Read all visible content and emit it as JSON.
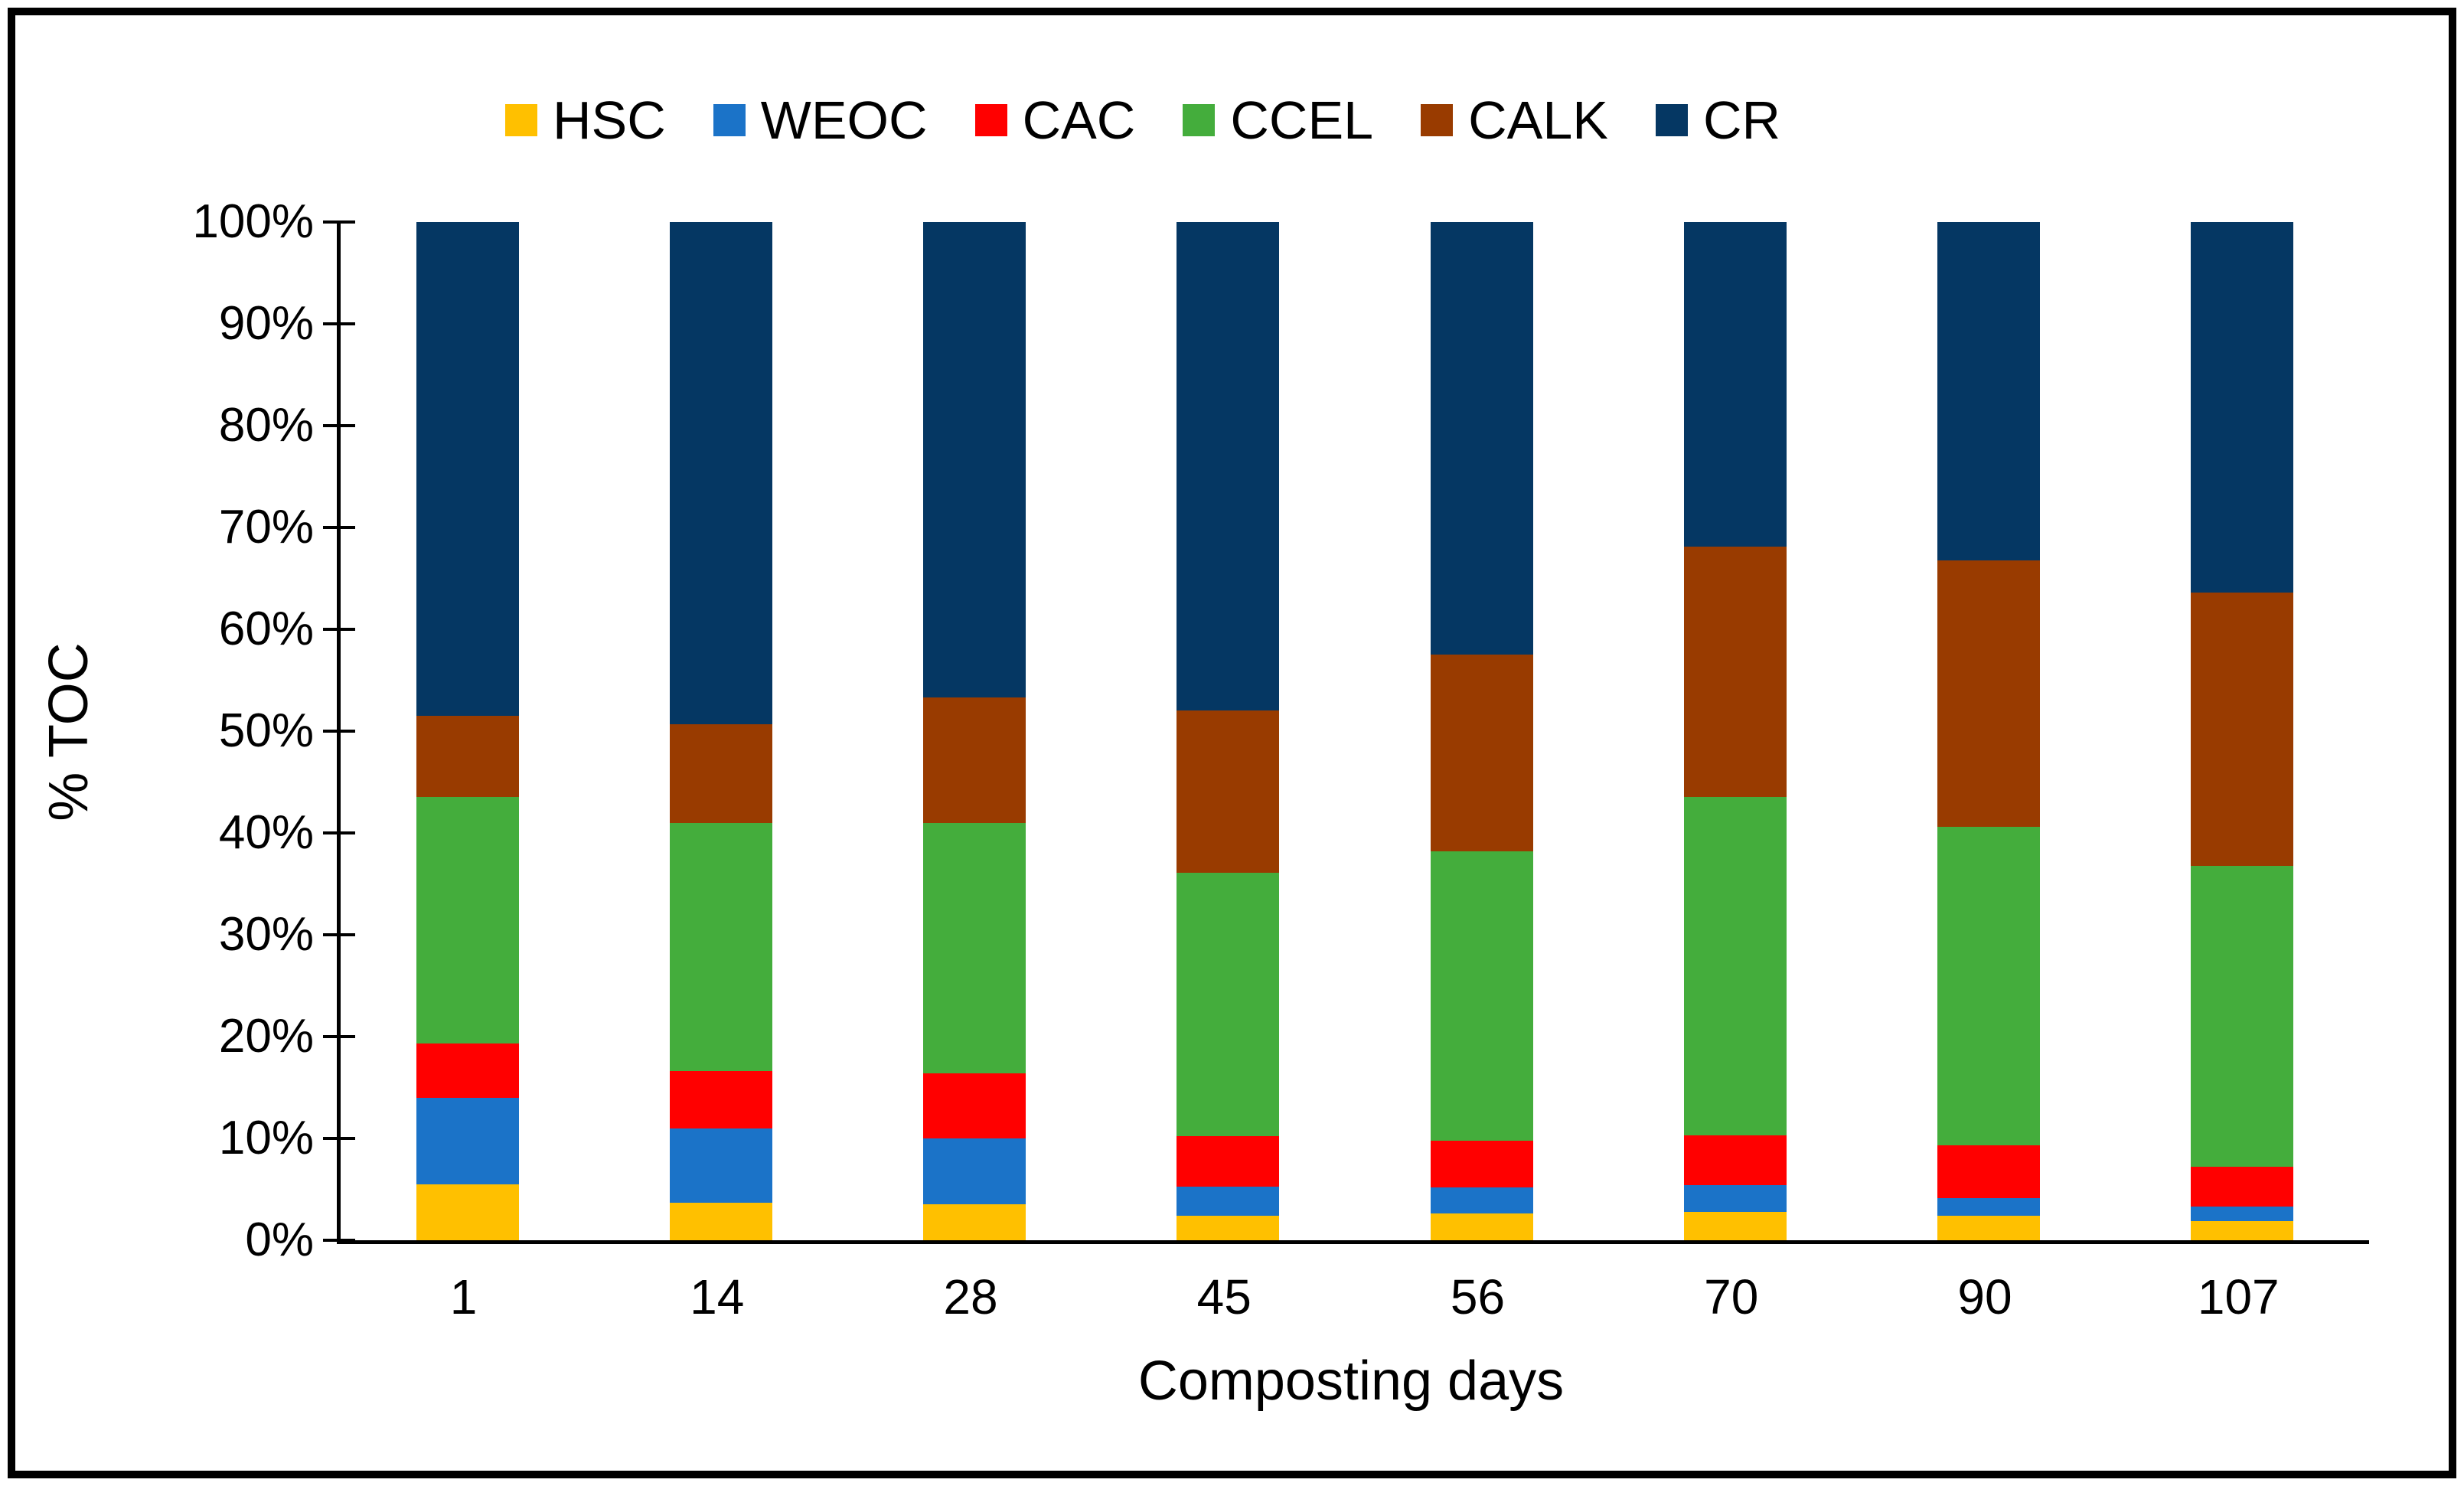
{
  "figure": {
    "background": "#FFFFFF",
    "border_color": "#000000"
  },
  "chart_data": {
    "type": "bar",
    "stacked": true,
    "stack_unit": "percent",
    "title": "",
    "xlabel": "Composting days",
    "ylabel": "% TOC",
    "categories": [
      "1",
      "14",
      "28",
      "45",
      "56",
      "70",
      "90",
      "107"
    ],
    "series": [
      {
        "name": "HSC",
        "color": "#FFC000",
        "values": [
          5.5,
          3.7,
          3.5,
          2.4,
          2.6,
          2.8,
          2.4,
          1.9
        ]
      },
      {
        "name": "WEOC",
        "color": "#1B73C8",
        "values": [
          8.5,
          7.3,
          6.5,
          2.9,
          2.6,
          2.6,
          1.7,
          1.4
        ]
      },
      {
        "name": "CAC",
        "color": "#FF0000",
        "values": [
          5.3,
          5.6,
          6.4,
          4.9,
          4.6,
          4.9,
          5.2,
          3.9
        ]
      },
      {
        "name": "CCEL",
        "color": "#44AD3C",
        "values": [
          24.2,
          24.4,
          24.6,
          25.9,
          28.4,
          33.2,
          31.3,
          29.6
        ]
      },
      {
        "name": "CALK",
        "color": "#993B00",
        "values": [
          8.0,
          9.7,
          12.3,
          15.9,
          19.3,
          24.6,
          26.2,
          26.8
        ]
      },
      {
        "name": "CR",
        "color": "#053763",
        "values": [
          48.5,
          49.3,
          46.7,
          48.0,
          42.5,
          31.9,
          33.2,
          36.4
        ]
      }
    ],
    "y_axis": {
      "min": 0,
      "max": 100,
      "tick_step": 10,
      "tick_labels": [
        "0%",
        "10%",
        "20%",
        "30%",
        "40%",
        "50%",
        "60%",
        "70%",
        "80%",
        "90%",
        "100%"
      ]
    },
    "legend": {
      "position": "top",
      "labels": [
        "HSC",
        "WEOC",
        "CAC",
        "CCEL",
        "CALK",
        "CR"
      ]
    },
    "grid": false
  }
}
